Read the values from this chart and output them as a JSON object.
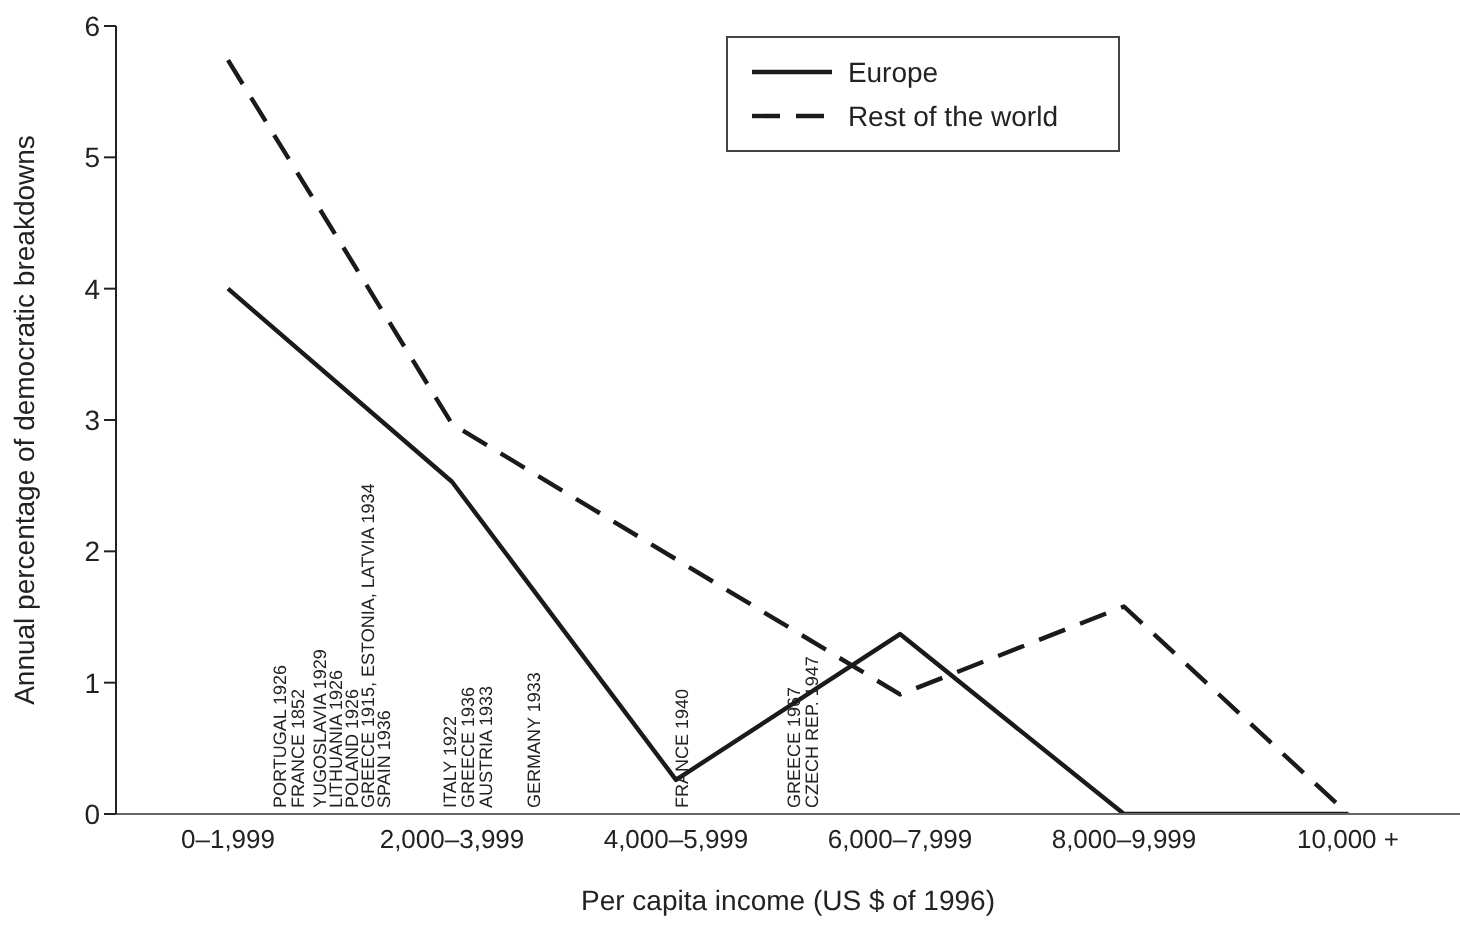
{
  "chart_data": {
    "type": "line",
    "xlabel": "Per capita income (US $ of 1996)",
    "ylabel": "Annual percentage of democratic breakdowns",
    "categories": [
      "0–1,999",
      "2,000–3,999",
      "4,000–5,999",
      "6,000–7,999",
      "8,000–9,999",
      "10,000 +"
    ],
    "series": [
      {
        "name": "Europe",
        "color": "#1a1a1a",
        "line_style": "solid",
        "values": [
          4.0,
          2.53,
          0.26,
          1.37,
          0,
          0
        ]
      },
      {
        "name": "Rest of the world",
        "color": "#1a1a1a",
        "line_style": "dashed",
        "values": [
          5.74,
          2.97,
          null,
          0.91,
          1.58,
          0
        ]
      }
    ],
    "ylim": [
      0,
      6
    ],
    "yticks": [
      0,
      1,
      2,
      3,
      4,
      5,
      6
    ],
    "grid": false,
    "legend": "top right",
    "marker": "none",
    "annotations": [
      "PORTUGAL 1926",
      "FRANCE 1852",
      "YUGOSLAVIA 1929",
      "LITHUANIA 1926",
      "POLAND 1926",
      "GREECE 1915, ESTONIA, LATVIA 1934",
      "SPAIN 1936",
      "ITALY 1922",
      "GREECE 1936",
      "AUSTRIA 1933",
      "GERMANY 1933",
      "FRANCE 1940",
      "GREECE 1967",
      "CZECH REP. 1947"
    ]
  }
}
